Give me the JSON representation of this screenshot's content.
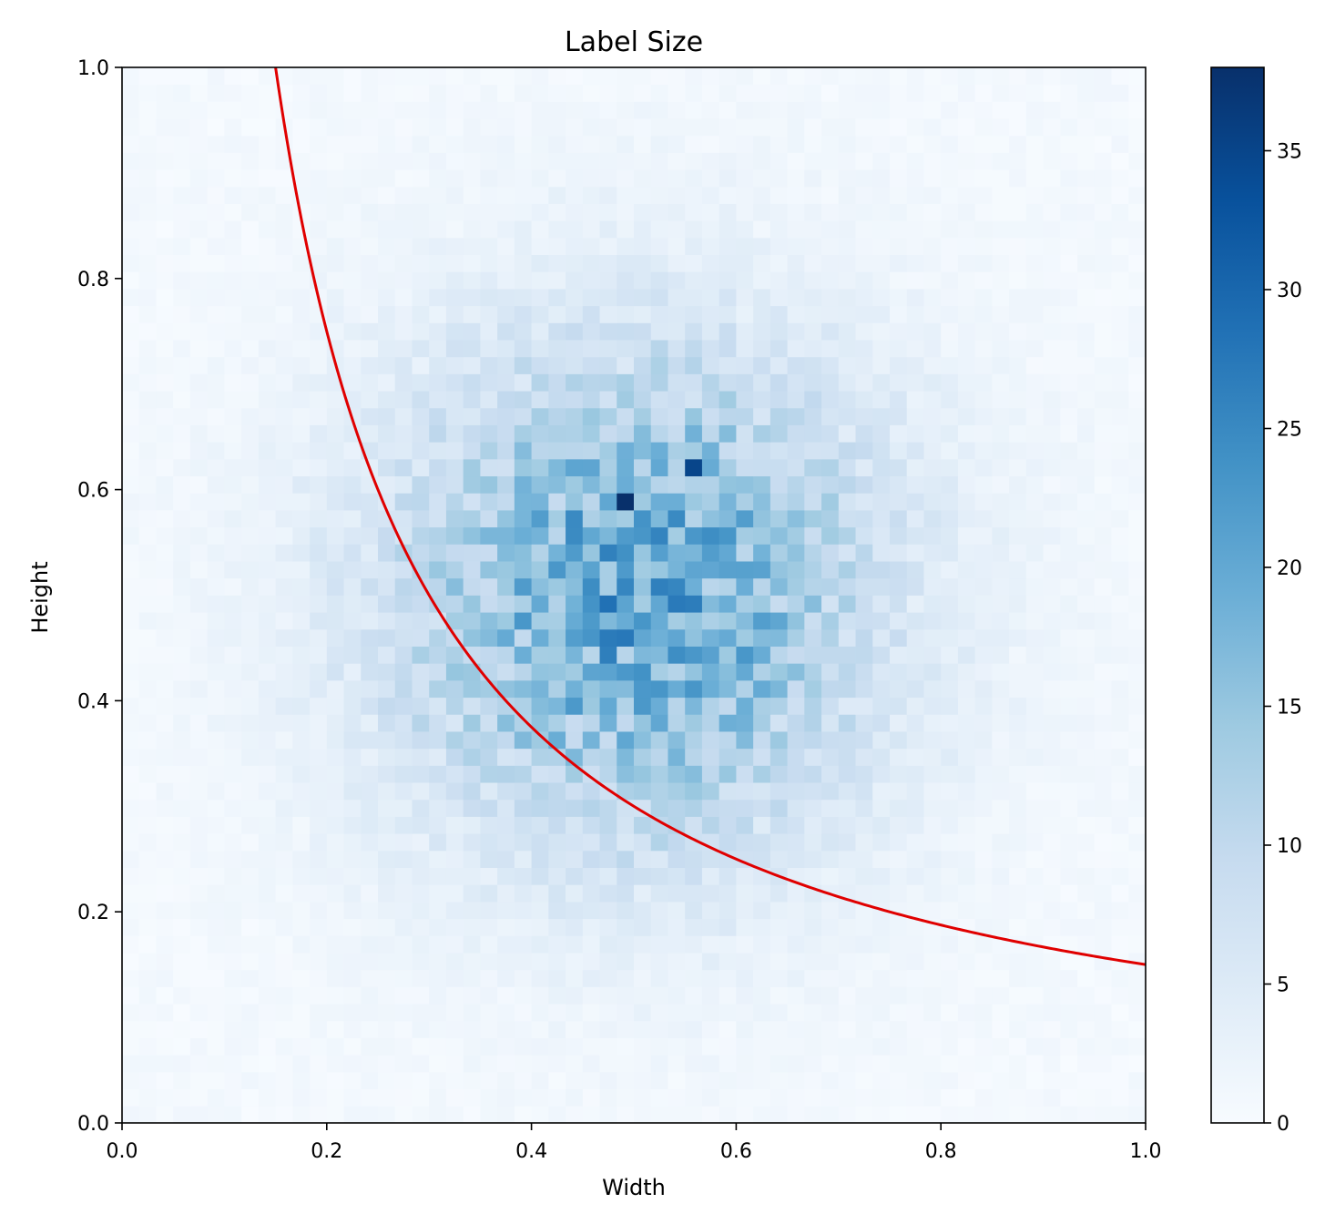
{
  "chart_data": {
    "type": "heatmap",
    "title": "Label Size",
    "xlabel": "Width",
    "ylabel": "Height",
    "xlim": [
      0.0,
      1.0
    ],
    "ylim": [
      0.0,
      1.0
    ],
    "x_ticks": [
      "0.0",
      "0.2",
      "0.4",
      "0.6",
      "0.8",
      "1.0"
    ],
    "y_ticks": [
      "0.0",
      "0.2",
      "0.4",
      "0.6",
      "0.8",
      "1.0"
    ],
    "grid": false,
    "bins": [
      60,
      62
    ],
    "colormap": "Blues",
    "colorbar": {
      "min": 0,
      "max": 38,
      "ticks": [
        "0",
        "5",
        "10",
        "15",
        "20",
        "25",
        "30",
        "35"
      ],
      "colors": [
        "#f7fbff",
        "#deebf7",
        "#c6dbef",
        "#9ecae1",
        "#6baed6",
        "#4292c6",
        "#2171b5",
        "#08519c",
        "#08306b"
      ]
    },
    "density": {
      "peak_count": 38,
      "center": [
        0.5,
        0.5
      ],
      "spread": [
        0.17,
        0.17
      ]
    },
    "curve": {
      "equation": "y = 0.15 / x",
      "x_range": [
        0.15,
        1.0
      ],
      "color": "#e00000"
    }
  }
}
